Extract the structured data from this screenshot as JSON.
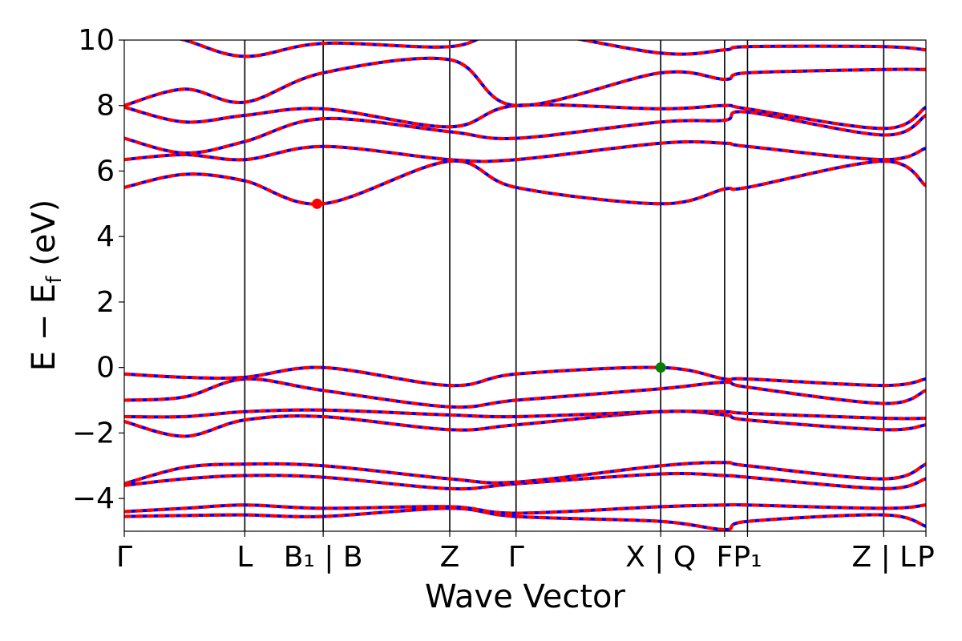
{
  "chart_data": {
    "type": "line",
    "xlabel": "Wave Vector",
    "ylabel": "E − E",
    "ylabel_sub": "f",
    "ylabel_unit": " (eV)",
    "ylim": [
      -5,
      10
    ],
    "yticks": [
      -4,
      -2,
      0,
      2,
      4,
      6,
      8,
      10
    ],
    "grid": false,
    "band_colors": [
      "#ff0000",
      "#0000ff"
    ],
    "kpoints": [
      {
        "k": 0.0,
        "label": "Γ"
      },
      {
        "k": 1.0,
        "label": "L"
      },
      {
        "k": 1.65,
        "label": "B₁ | B"
      },
      {
        "k": 2.7,
        "label": "Z"
      },
      {
        "k": 3.25,
        "label": "Γ"
      },
      {
        "k": 4.45,
        "label": "X | Q"
      },
      {
        "k": 4.98,
        "label": "F"
      },
      {
        "k": 5.17,
        "label": "P₁"
      },
      {
        "k": 6.3,
        "label": "Z | L"
      },
      {
        "k": 6.65,
        "label": "P"
      }
    ],
    "highlight_points": [
      {
        "name": "CBM",
        "k": 1.6,
        "E": 5.0,
        "color": "#ff0000"
      },
      {
        "name": "VBM",
        "k": 4.45,
        "E": 0.0,
        "color": "#008000"
      }
    ],
    "bands": [
      {
        "k": [
          0,
          0.5,
          1.0,
          1.65,
          2.7,
          3.25,
          4.45,
          4.98,
          5.17,
          6.3,
          6.65
        ],
        "E": [
          -4.55,
          -4.52,
          -4.5,
          -4.55,
          -4.3,
          -4.55,
          -4.7,
          -4.95,
          -4.7,
          -4.5,
          -4.85
        ]
      },
      {
        "k": [
          0,
          0.5,
          1.0,
          1.65,
          2.7,
          3.25,
          4.45,
          4.98,
          5.17,
          6.3,
          6.65
        ],
        "E": [
          -4.4,
          -4.3,
          -4.2,
          -4.3,
          -4.25,
          -4.45,
          -4.25,
          -4.2,
          -4.2,
          -4.3,
          -4.2
        ]
      },
      {
        "k": [
          0,
          0.5,
          1.0,
          1.65,
          2.7,
          3.25,
          4.45,
          4.98,
          5.17,
          6.3,
          6.65
        ],
        "E": [
          -3.6,
          -3.4,
          -3.3,
          -3.35,
          -3.7,
          -3.55,
          -3.25,
          -3.3,
          -3.35,
          -3.7,
          -3.4
        ]
      },
      {
        "k": [
          0,
          0.5,
          1.0,
          1.65,
          2.7,
          3.25,
          4.45,
          4.98,
          5.17,
          6.3,
          6.65
        ],
        "E": [
          -3.55,
          -3.05,
          -2.95,
          -3.0,
          -3.4,
          -3.5,
          -3.0,
          -2.9,
          -3.0,
          -3.4,
          -2.95
        ]
      },
      {
        "k": [
          0,
          0.5,
          1.0,
          1.65,
          2.7,
          3.25,
          4.45,
          4.98,
          5.17,
          6.3,
          6.65
        ],
        "E": [
          -1.65,
          -2.1,
          -1.6,
          -1.5,
          -1.9,
          -1.75,
          -1.35,
          -1.45,
          -1.6,
          -1.9,
          -1.75
        ]
      },
      {
        "k": [
          0,
          0.5,
          1.0,
          1.65,
          2.7,
          3.25,
          4.45,
          4.98,
          5.17,
          6.3,
          6.65
        ],
        "E": [
          -1.5,
          -1.5,
          -1.35,
          -1.3,
          -1.45,
          -1.5,
          -1.35,
          -1.35,
          -1.4,
          -1.55,
          -1.55
        ]
      },
      {
        "k": [
          0,
          0.5,
          1.0,
          1.65,
          2.7,
          3.25,
          4.45,
          4.98,
          5.17,
          6.3,
          6.65
        ],
        "E": [
          -1.0,
          -0.9,
          -0.35,
          -0.7,
          -1.2,
          -1.0,
          -0.65,
          -0.45,
          -0.6,
          -1.1,
          -0.7
        ]
      },
      {
        "k": [
          0,
          0.5,
          1.0,
          1.65,
          2.7,
          3.25,
          4.45,
          4.98,
          5.17,
          6.3,
          6.65
        ],
        "E": [
          -0.2,
          -0.3,
          -0.3,
          0.0,
          -0.55,
          -0.2,
          0.0,
          -0.35,
          -0.35,
          -0.55,
          -0.35
        ]
      },
      {
        "k": [
          0,
          0.5,
          1.0,
          1.65,
          2.7,
          3.25,
          4.45,
          4.98,
          5.17,
          6.3,
          6.65
        ],
        "E": [
          5.5,
          5.9,
          5.7,
          5.0,
          6.3,
          5.5,
          5.0,
          5.45,
          5.5,
          6.3,
          5.55
        ]
      },
      {
        "k": [
          0,
          0.5,
          1.0,
          1.65,
          2.7,
          3.25,
          4.45,
          4.98,
          5.17,
          6.3,
          6.65
        ],
        "E": [
          6.35,
          6.5,
          6.35,
          6.75,
          6.35,
          6.35,
          6.85,
          6.85,
          6.75,
          6.35,
          6.7
        ]
      },
      {
        "k": [
          0,
          0.5,
          1.0,
          1.65,
          2.7,
          3.25,
          4.45,
          4.98,
          5.17,
          6.3,
          6.65
        ],
        "E": [
          7.0,
          6.55,
          6.9,
          7.6,
          7.2,
          7.0,
          7.5,
          7.55,
          7.8,
          7.1,
          7.7
        ]
      },
      {
        "k": [
          0,
          0.5,
          1.0,
          1.65,
          2.7,
          3.25,
          4.45,
          4.98,
          5.17,
          6.3,
          6.65
        ],
        "E": [
          7.95,
          7.5,
          7.7,
          7.9,
          7.35,
          8.0,
          7.9,
          8.0,
          7.9,
          7.3,
          7.95
        ]
      },
      {
        "k": [
          0,
          0.5,
          1.0,
          1.65,
          2.7,
          3.25,
          4.45,
          4.98,
          5.17,
          6.3,
          6.65
        ],
        "E": [
          8.0,
          8.5,
          8.1,
          9.0,
          9.4,
          8.0,
          9.0,
          8.8,
          9.0,
          9.1,
          9.1
        ]
      },
      {
        "k": [
          0,
          0.5,
          1.0,
          1.65,
          2.7,
          3.25,
          4.45,
          4.98,
          5.17,
          6.3,
          6.65
        ],
        "E": [
          10.5,
          10.0,
          9.5,
          9.9,
          9.8,
          10.3,
          9.6,
          9.7,
          9.8,
          9.8,
          9.7
        ]
      }
    ]
  }
}
